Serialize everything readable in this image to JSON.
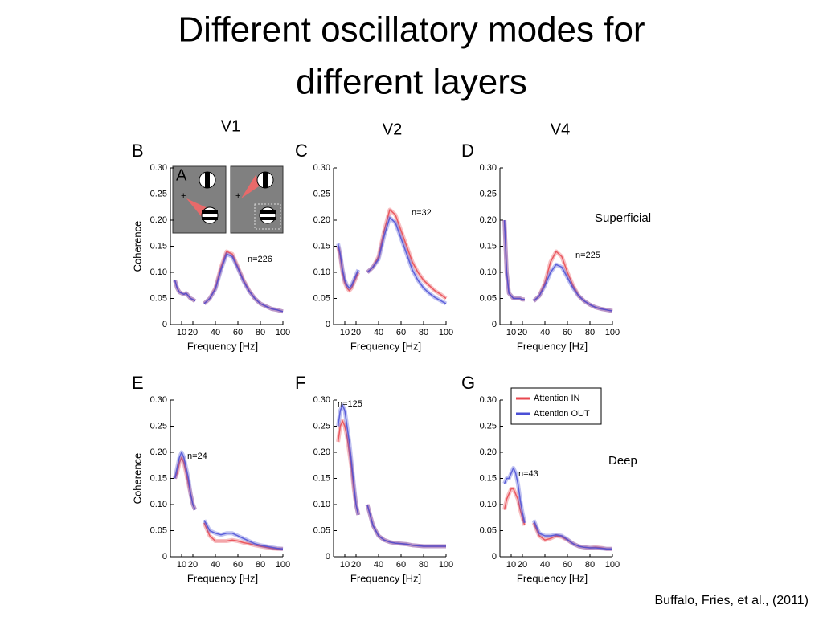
{
  "title_lines": [
    "Different oscillatory modes for",
    "different layers"
  ],
  "columns": [
    "V1",
    "V2",
    "V4"
  ],
  "citation": "Buffalo, Fries, et al., (2011)",
  "chart_data": [
    {
      "type": "line",
      "panel": "B",
      "inset_label": "A",
      "annotation": "n=226",
      "xlabel": "Frequency [Hz]",
      "ylabel": "Coherence",
      "x": [
        4,
        6,
        8,
        10,
        12,
        14,
        16,
        18,
        20,
        22,
        null,
        30,
        35,
        40,
        45,
        50,
        55,
        60,
        65,
        70,
        75,
        80,
        85,
        90,
        95,
        100
      ],
      "xlim": [
        0,
        100
      ],
      "xticks": [
        10,
        20,
        40,
        60,
        80,
        100
      ],
      "ylim": [
        0,
        0.3
      ],
      "yticks": [
        0,
        0.05,
        {
          "value": 0.1,
          "label": "0.10"
        },
        0.15,
        {
          "value": 0.2,
          "label": "0.20"
        },
        0.25,
        {
          "value": 0.3,
          "label": "0.30"
        }
      ],
      "series": [
        {
          "color": "#e8474f",
          "values": [
            0.085,
            0.07,
            0.062,
            0.06,
            0.058,
            0.06,
            0.055,
            0.05,
            0.048,
            0.045,
            null,
            0.04,
            0.05,
            0.07,
            0.11,
            0.14,
            0.135,
            0.11,
            0.085,
            0.065,
            0.05,
            0.04,
            0.035,
            0.03,
            0.028,
            0.025
          ]
        },
        {
          "color": "#4a4fd6",
          "values": [
            0.085,
            0.07,
            0.062,
            0.06,
            0.058,
            0.06,
            0.055,
            0.05,
            0.048,
            0.045,
            null,
            0.04,
            0.05,
            0.068,
            0.105,
            0.135,
            0.13,
            0.108,
            0.083,
            0.064,
            0.05,
            0.04,
            0.035,
            0.03,
            0.028,
            0.025
          ]
        }
      ]
    },
    {
      "type": "line",
      "panel": "C",
      "annotation": "n=32",
      "xlabel": "Frequency [Hz]",
      "x": [
        4,
        6,
        8,
        10,
        12,
        14,
        16,
        18,
        20,
        22,
        null,
        30,
        35,
        40,
        45,
        50,
        55,
        60,
        65,
        70,
        75,
        80,
        85,
        90,
        95,
        100
      ],
      "xlim": [
        0,
        100
      ],
      "xticks": [
        10,
        20,
        40,
        60,
        80,
        100
      ],
      "ylim": [
        0,
        0.3
      ],
      "yticks": [
        0,
        0.05,
        {
          "value": 0.1,
          "label": "0.10"
        },
        0.15,
        {
          "value": 0.2,
          "label": "0.20"
        },
        0.25,
        {
          "value": 0.3,
          "label": "0.30"
        }
      ],
      "series": [
        {
          "color": "#e8474f",
          "values": [
            0.15,
            0.13,
            0.1,
            0.08,
            0.07,
            0.065,
            0.07,
            0.08,
            0.09,
            0.1,
            null,
            0.1,
            0.11,
            0.13,
            0.18,
            0.22,
            0.21,
            0.18,
            0.15,
            0.12,
            0.1,
            0.085,
            0.075,
            0.065,
            0.058,
            0.05
          ]
        },
        {
          "color": "#4a4fd6",
          "values": [
            0.155,
            0.135,
            0.105,
            0.085,
            0.075,
            0.07,
            0.075,
            0.085,
            0.095,
            0.105,
            null,
            0.1,
            0.11,
            0.125,
            0.17,
            0.205,
            0.195,
            0.165,
            0.135,
            0.105,
            0.085,
            0.07,
            0.06,
            0.052,
            0.046,
            0.04
          ]
        }
      ]
    },
    {
      "type": "line",
      "panel": "D",
      "annotation": "n=225",
      "layer": "Superficial",
      "xlabel": "Frequency [Hz]",
      "x": [
        4,
        6,
        8,
        10,
        12,
        14,
        16,
        18,
        20,
        22,
        null,
        30,
        35,
        40,
        45,
        50,
        55,
        60,
        65,
        70,
        75,
        80,
        85,
        90,
        95,
        100
      ],
      "xlim": [
        0,
        100
      ],
      "xticks": [
        10,
        20,
        40,
        60,
        80,
        100
      ],
      "ylim": [
        0,
        0.3
      ],
      "yticks": [
        0,
        0.05,
        {
          "value": 0.1,
          "label": "0.10"
        },
        0.15,
        {
          "value": 0.2,
          "label": "0.20"
        },
        0.25,
        {
          "value": 0.3,
          "label": "0.30"
        }
      ],
      "series": [
        {
          "color": "#e8474f",
          "values": [
            0.2,
            0.1,
            0.06,
            0.055,
            0.05,
            0.05,
            0.05,
            0.05,
            0.048,
            0.048,
            null,
            0.045,
            0.055,
            0.08,
            0.12,
            0.14,
            0.13,
            0.1,
            0.075,
            0.055,
            0.045,
            0.038,
            0.033,
            0.03,
            0.028,
            0.026
          ]
        },
        {
          "color": "#4a4fd6",
          "values": [
            0.2,
            0.1,
            0.06,
            0.055,
            0.05,
            0.05,
            0.05,
            0.05,
            0.048,
            0.048,
            null,
            0.045,
            0.055,
            0.075,
            0.1,
            0.115,
            0.11,
            0.09,
            0.07,
            0.055,
            0.045,
            0.038,
            0.033,
            0.03,
            0.028,
            0.026
          ]
        }
      ]
    },
    {
      "type": "line",
      "panel": "E",
      "annotation": "n=24",
      "xlabel": "Frequency [Hz]",
      "ylabel": "Coherence",
      "x": [
        4,
        6,
        8,
        10,
        12,
        14,
        16,
        18,
        20,
        22,
        null,
        30,
        35,
        40,
        45,
        50,
        55,
        60,
        65,
        70,
        75,
        80,
        85,
        90,
        95,
        100
      ],
      "xlim": [
        0,
        100
      ],
      "xticks": [
        10,
        20,
        40,
        60,
        80,
        100
      ],
      "ylim": [
        0,
        0.3
      ],
      "yticks": [
        0,
        0.05,
        {
          "value": 0.1,
          "label": "0.10"
        },
        0.15,
        {
          "value": 0.2,
          "label": "0.20"
        },
        0.25,
        {
          "value": 0.3,
          "label": "0.30"
        }
      ],
      "series": [
        {
          "color": "#e8474f",
          "values": [
            0.15,
            0.16,
            0.18,
            0.19,
            0.18,
            0.16,
            0.14,
            0.12,
            0.1,
            0.09,
            null,
            0.065,
            0.04,
            0.03,
            0.03,
            0.03,
            0.032,
            0.03,
            0.027,
            0.025,
            0.022,
            0.02,
            0.018,
            0.016,
            0.015,
            0.015
          ]
        },
        {
          "color": "#4a4fd6",
          "values": [
            0.15,
            0.17,
            0.19,
            0.2,
            0.19,
            0.17,
            0.15,
            0.12,
            0.1,
            0.09,
            null,
            0.07,
            0.05,
            0.045,
            0.042,
            0.045,
            0.045,
            0.04,
            0.035,
            0.03,
            0.025,
            0.022,
            0.02,
            0.018,
            0.016,
            0.015
          ]
        }
      ]
    },
    {
      "type": "line",
      "panel": "F",
      "annotation": "n=125",
      "xlabel": "Frequency [Hz]",
      "x": [
        4,
        6,
        8,
        10,
        12,
        14,
        16,
        18,
        20,
        22,
        null,
        30,
        35,
        40,
        45,
        50,
        55,
        60,
        65,
        70,
        75,
        80,
        85,
        90,
        95,
        100
      ],
      "xlim": [
        0,
        100
      ],
      "xticks": [
        10,
        20,
        40,
        60,
        80,
        100
      ],
      "ylim": [
        0,
        0.3
      ],
      "yticks": [
        0,
        0.05,
        {
          "value": 0.1,
          "label": "0.10"
        },
        0.15,
        {
          "value": 0.2,
          "label": "0.20"
        },
        0.25,
        {
          "value": 0.3,
          "label": "0.30"
        }
      ],
      "series": [
        {
          "color": "#e8474f",
          "values": [
            0.22,
            0.25,
            0.26,
            0.25,
            0.23,
            0.2,
            0.17,
            0.13,
            0.1,
            0.08,
            null,
            0.1,
            0.06,
            0.04,
            0.032,
            0.028,
            0.026,
            0.025,
            0.024,
            0.022,
            0.021,
            0.02,
            0.02,
            0.02,
            0.02,
            0.02
          ]
        },
        {
          "color": "#4a4fd6",
          "values": [
            0.25,
            0.28,
            0.29,
            0.28,
            0.25,
            0.22,
            0.18,
            0.14,
            0.1,
            0.08,
            null,
            0.1,
            0.06,
            0.04,
            0.032,
            0.028,
            0.026,
            0.025,
            0.024,
            0.022,
            0.021,
            0.02,
            0.02,
            0.02,
            0.02,
            0.02
          ]
        }
      ]
    },
    {
      "type": "line",
      "panel": "G",
      "annotation": "n=43",
      "layer": "Deep",
      "xlabel": "Frequency [Hz]",
      "legend": true,
      "x": [
        4,
        6,
        8,
        10,
        12,
        14,
        16,
        18,
        20,
        22,
        null,
        30,
        35,
        40,
        45,
        50,
        55,
        60,
        65,
        70,
        75,
        80,
        85,
        90,
        95,
        100
      ],
      "xlim": [
        0,
        100
      ],
      "xticks": [
        10,
        20,
        40,
        60,
        80,
        100
      ],
      "ylim": [
        0,
        0.3
      ],
      "yticks": [
        0,
        0.05,
        {
          "value": 0.1,
          "label": "0.10"
        },
        0.15,
        {
          "value": 0.2,
          "label": "0.20"
        },
        0.25,
        {
          "value": 0.3,
          "label": "0.30"
        }
      ],
      "series": [
        {
          "name": "Attention IN",
          "color": "#e8474f",
          "values": [
            0.09,
            0.11,
            0.12,
            0.13,
            0.13,
            0.12,
            0.11,
            0.09,
            0.075,
            0.06,
            null,
            0.065,
            0.04,
            0.032,
            0.035,
            0.04,
            0.038,
            0.032,
            0.025,
            0.02,
            0.018,
            0.017,
            0.018,
            0.017,
            0.015,
            0.015
          ]
        },
        {
          "name": "Attention OUT",
          "color": "#4a4fd6",
          "values": [
            0.14,
            0.15,
            0.15,
            0.16,
            0.17,
            0.16,
            0.14,
            0.11,
            0.085,
            0.065,
            null,
            0.07,
            0.045,
            0.04,
            0.04,
            0.042,
            0.04,
            0.033,
            0.025,
            0.02,
            0.018,
            0.017,
            0.017,
            0.016,
            0.015,
            0.015
          ]
        }
      ]
    }
  ]
}
